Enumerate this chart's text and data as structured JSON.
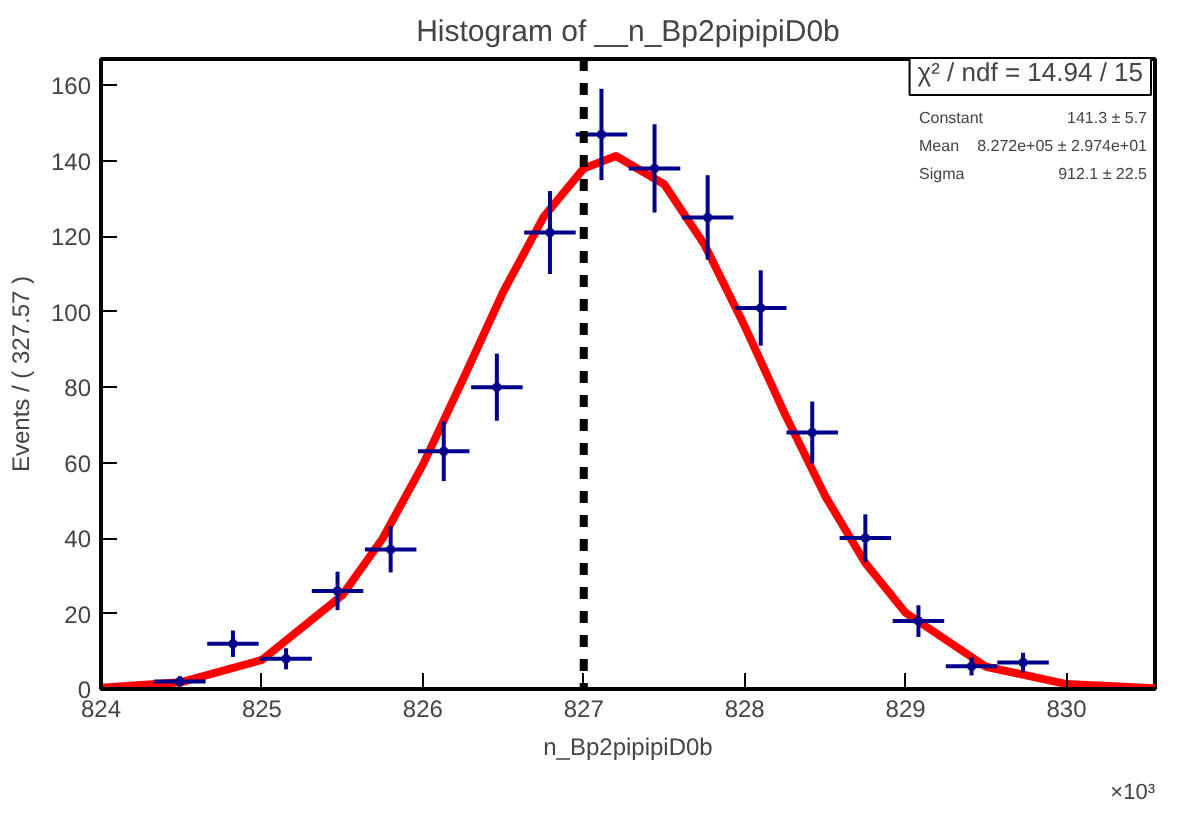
{
  "chart_data": {
    "type": "scatter",
    "title": "Histogram of __n_Bp2pipipiD0b",
    "xlabel": "n_Bp2pipipiD0b",
    "ylabel": "Events / ( 327.57 )",
    "series": [
      {
        "color": "#00008b",
        "marker": "cross",
        "x": [
          824.49,
          824.82,
          825.15,
          825.47,
          825.8,
          826.13,
          826.46,
          826.79,
          827.11,
          827.44,
          827.77,
          828.1,
          828.42,
          828.75,
          829.08,
          829.41,
          829.73
        ],
        "values": [
          2,
          12,
          8,
          26,
          37,
          63,
          80,
          121,
          147,
          138,
          125,
          101,
          68,
          40,
          18,
          6,
          7
        ],
        "errors": [
          1.4,
          3.5,
          2.8,
          5.1,
          6.1,
          7.9,
          8.9,
          11,
          12.1,
          11.7,
          11.2,
          10,
          8.2,
          6.3,
          4.2,
          2.4,
          2.6
        ],
        "xerrors": [
          0.16,
          0.16,
          0.16,
          0.16,
          0.16,
          0.16,
          0.16,
          0.16,
          0.16,
          0.16,
          0.16,
          0.16,
          0.16,
          0.16,
          0.16,
          0.16,
          0.16
        ]
      },
      {
        "type": "line",
        "color": "#ff0000",
        "x": [
          824.0,
          824.5,
          825.0,
          825.5,
          825.75,
          826.0,
          826.25,
          826.5,
          826.75,
          827.0,
          827.2,
          827.5,
          827.75,
          828.0,
          828.25,
          828.5,
          828.75,
          829.0,
          829.5,
          830.0,
          830.55
        ],
        "values": [
          0.3,
          1.8,
          7.7,
          24.9,
          39.9,
          59.4,
          82.1,
          105.3,
          125.1,
          138.0,
          141.3,
          133.8,
          117.8,
          96.2,
          72.9,
          51.2,
          33.4,
          20.2,
          5.9,
          1.3,
          0.2
        ]
      }
    ],
    "xlim": [
      824,
      830.55
    ],
    "ylim": [
      0,
      167
    ],
    "xticks": [
      824,
      825,
      826,
      827,
      828,
      829,
      830
    ],
    "yticks": [
      0,
      20,
      40,
      60,
      80,
      100,
      120,
      140,
      160
    ],
    "ref_lines": [
      {
        "axis": "x",
        "value": 827.0,
        "color": "#000000",
        "line_style": "dashed"
      }
    ],
    "annotations": [
      "×10³",
      "χ² / ndf = 14.94 / 15",
      "Constant  141.3 ± 5.7",
      "Mean  8.272e+05 ± 2.974e+01",
      "Sigma  912.1 ± 22.5"
    ],
    "grid": false
  }
}
